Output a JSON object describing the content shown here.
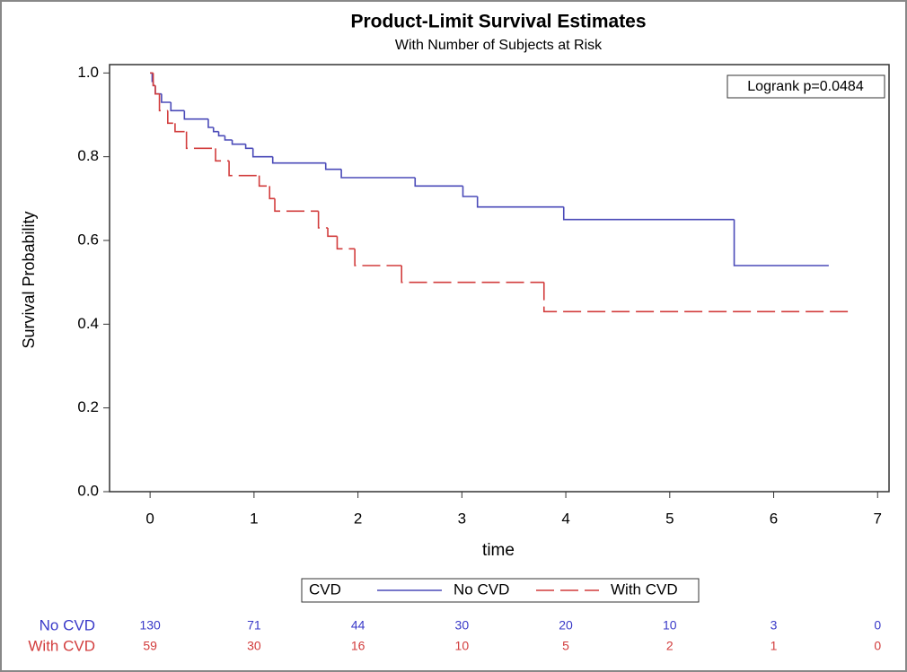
{
  "chart_data": {
    "type": "step",
    "title": "Product-Limit Survival Estimates",
    "subtitle": "With Number of Subjects at Risk",
    "xlabel": "time",
    "ylabel": "Survival Probability",
    "annotation": "Logrank p=0.0484",
    "legend_title": "CVD",
    "xlim": [
      -0.39,
      7.11
    ],
    "ylim": [
      0,
      1.02
    ],
    "xticks": [
      0,
      1,
      2,
      3,
      4,
      5,
      6,
      7
    ],
    "yticks": [
      {
        "value": 0,
        "label": "0.0"
      },
      0.2,
      0.4,
      0.6,
      0.8,
      {
        "value": 1,
        "label": "1.0"
      }
    ],
    "series": [
      {
        "name": "No CVD",
        "color": "#4a4ab8",
        "dashed": false,
        "x": [
          0,
          0.02,
          0.03,
          0.05,
          0.11,
          0.2,
          0.33,
          0.56,
          0.61,
          0.66,
          0.72,
          0.79,
          0.92,
          0.99,
          1.18,
          1.69,
          1.84,
          2.55,
          3.01,
          3.15,
          3.98,
          5.62,
          6.53
        ],
        "values": [
          1,
          0.98,
          0.97,
          0.95,
          0.93,
          0.91,
          0.89,
          0.87,
          0.86,
          0.85,
          0.84,
          0.83,
          0.82,
          0.8,
          0.785,
          0.77,
          0.75,
          0.73,
          0.705,
          0.68,
          0.65,
          0.54,
          0.54
        ]
      },
      {
        "name": "With CVD",
        "color": "#d23c3c",
        "dashed": true,
        "x": [
          0,
          0.03,
          0.05,
          0.09,
          0.17,
          0.24,
          0.35,
          0.63,
          0.76,
          1.05,
          1.15,
          1.2,
          1.62,
          1.71,
          1.8,
          1.97,
          2.42,
          3.79,
          6.75
        ],
        "values": [
          1,
          0.97,
          0.95,
          0.91,
          0.88,
          0.86,
          0.82,
          0.79,
          0.755,
          0.73,
          0.7,
          0.67,
          0.63,
          0.61,
          0.58,
          0.54,
          0.5,
          0.43,
          0.43
        ]
      }
    ],
    "risk_table": [
      {
        "name": "No CVD",
        "color": "#3a3ac8",
        "values": [
          130,
          71,
          44,
          30,
          20,
          10,
          3,
          0
        ]
      },
      {
        "name": "With CVD",
        "color": "#d23c3c",
        "values": [
          59,
          30,
          16,
          10,
          5,
          2,
          1,
          0
        ]
      }
    ]
  }
}
